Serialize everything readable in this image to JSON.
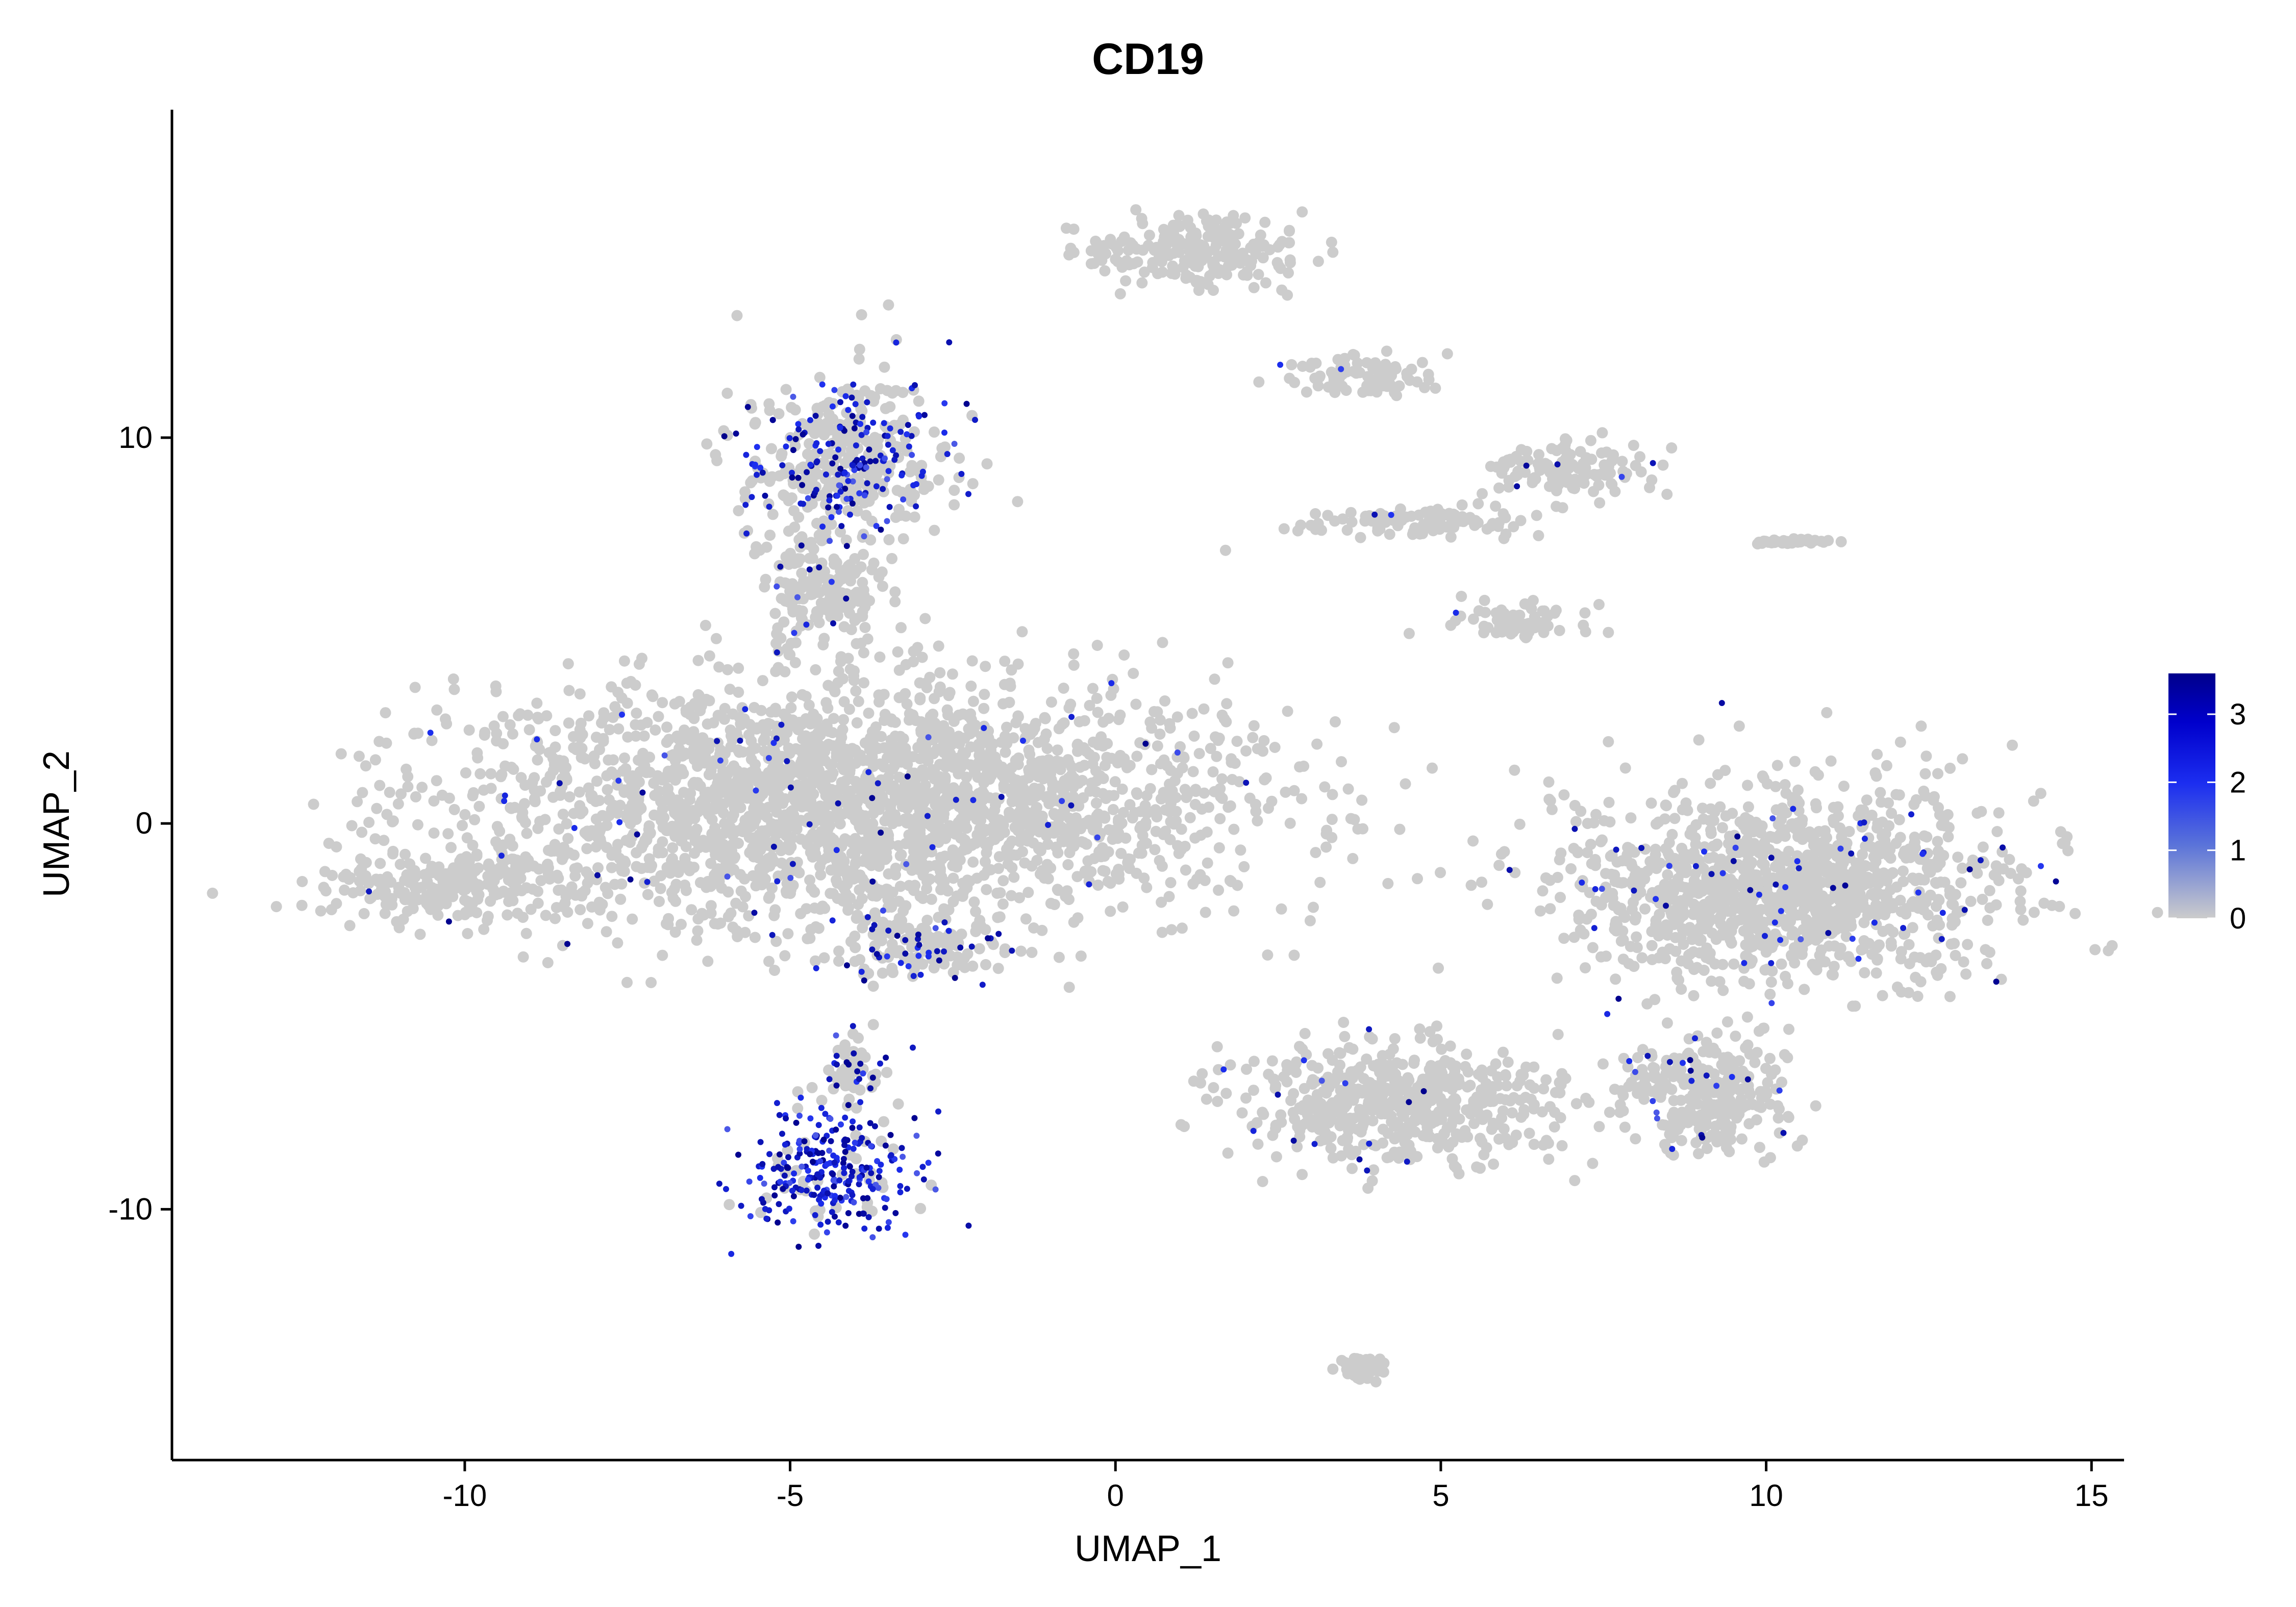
{
  "chart_data": {
    "type": "scatter",
    "title": "CD19",
    "xlabel": "UMAP_1",
    "ylabel": "UMAP_2",
    "xlim": [
      -14.5,
      15.5
    ],
    "ylim": [
      -16.5,
      18.5
    ],
    "xticks": [
      -10,
      -5,
      0,
      5,
      10,
      15
    ],
    "yticks": [
      -10,
      0,
      10
    ],
    "xtick_labels": [
      "-10",
      "-5",
      "0",
      "5",
      "10",
      "15"
    ],
    "ytick_labels": [
      "-10",
      "0",
      "10"
    ],
    "grid": false,
    "point_color_low": "#cccccc",
    "point_color_high": "#00008b",
    "legend": {
      "placement": "right",
      "type": "colorbar",
      "range": [
        0,
        3.6
      ],
      "ticks": [
        0,
        1,
        2,
        3
      ],
      "tick_labels": [
        "0",
        "1",
        "2",
        "3"
      ]
    },
    "clusters": [
      {
        "name": "",
        "cx": -4,
        "cy": 0.5,
        "rx": 6.2,
        "ry": 3.2,
        "expr": 0.02
      },
      {
        "name": "",
        "cx": -10.3,
        "cy": -1.6,
        "rx": 1.8,
        "ry": 1.0,
        "expr": 0.01
      },
      {
        "name": "",
        "cx": -4.2,
        "cy": 9.4,
        "rx": 1.7,
        "ry": 2.2,
        "expr": 0.35
      },
      {
        "name": "",
        "cx": -4.5,
        "cy": 6.2,
        "rx": 0.9,
        "ry": 1.6,
        "expr": 0.05
      },
      {
        "name": "",
        "cx": -3,
        "cy": -3.2,
        "rx": 1.3,
        "ry": 0.9,
        "expr": 0.2
      },
      {
        "name": "",
        "cx": -4.4,
        "cy": -9.1,
        "rx": 1.4,
        "ry": 1.6,
        "expr": 0.85
      },
      {
        "name": "",
        "cx": -4,
        "cy": -6.4,
        "rx": 0.5,
        "ry": 1.0,
        "expr": 0.25
      },
      {
        "name": "",
        "cx": 1.2,
        "cy": 14.8,
        "rx": 1.8,
        "ry": 0.9,
        "expr": 0.02
      },
      {
        "name": "",
        "cx": 3.9,
        "cy": 11.6,
        "rx": 1.3,
        "ry": 0.5,
        "expr": 0.02
      },
      {
        "name": "",
        "cx": 7.0,
        "cy": 9.2,
        "rx": 1.3,
        "ry": 0.8,
        "expr": 0.02
      },
      {
        "name": "",
        "cx": 4.6,
        "cy": 7.8,
        "rx": 1.8,
        "ry": 0.4,
        "expr": 0.02
      },
      {
        "name": "",
        "cx": 6.1,
        "cy": 5.2,
        "rx": 1.1,
        "ry": 0.5,
        "expr": 0.02
      },
      {
        "name": "",
        "cx": 10.4,
        "cy": 7.3,
        "rx": 0.5,
        "ry": 0.08,
        "expr": 0.0
      },
      {
        "name": "",
        "cx": 10.3,
        "cy": -1.6,
        "rx": 3.6,
        "ry": 2.6,
        "expr": 0.05
      },
      {
        "name": "",
        "cx": 4.4,
        "cy": -7.3,
        "rx": 2.6,
        "ry": 1.6,
        "expr": 0.02
      },
      {
        "name": "",
        "cx": 9.0,
        "cy": -7.0,
        "rx": 1.4,
        "ry": 1.6,
        "expr": 0.06
      },
      {
        "name": "",
        "cx": 3.8,
        "cy": -14.1,
        "rx": 0.4,
        "ry": 0.3,
        "expr": 0.0
      }
    ]
  }
}
